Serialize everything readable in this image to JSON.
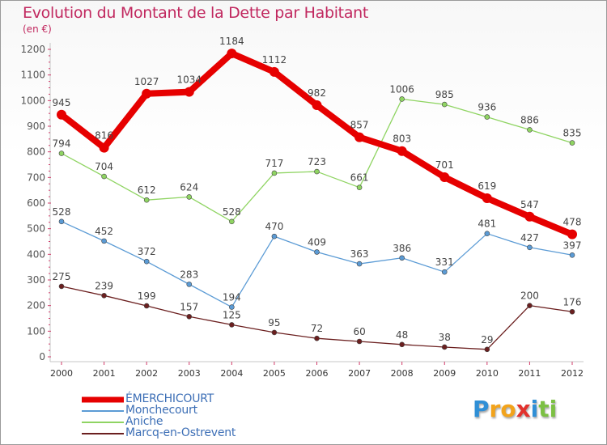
{
  "title": "Evolution du Montant de la Dette par Habitant",
  "subtitle": "(en €)",
  "chart_data": {
    "type": "line",
    "x": [
      "2000",
      "2001",
      "2002",
      "2003",
      "2004",
      "2005",
      "2006",
      "2007",
      "2008",
      "2009",
      "2010",
      "2011",
      "2012"
    ],
    "ylim": [
      0,
      1200
    ],
    "yticks": [
      0,
      100,
      200,
      300,
      400,
      500,
      600,
      700,
      800,
      900,
      1000,
      1100,
      1200
    ],
    "grid": false,
    "legend_position": "bottom-left",
    "series": [
      {
        "name": "ÉMERCHICOURT",
        "color": "#e60000",
        "values": [
          945,
          816,
          1027,
          1034,
          1184,
          1112,
          982,
          857,
          803,
          701,
          619,
          547,
          478
        ]
      },
      {
        "name": "Monchecourt",
        "color": "#5b9bd5",
        "values": [
          528,
          452,
          372,
          283,
          194,
          470,
          409,
          363,
          386,
          331,
          481,
          427,
          397
        ]
      },
      {
        "name": "Aniche",
        "color": "#8fd462",
        "values": [
          794,
          704,
          612,
          624,
          528,
          717,
          723,
          661,
          1006,
          985,
          936,
          886,
          835
        ]
      },
      {
        "name": "Marcq-en-Ostrevent",
        "color": "#6b1f1f",
        "values": [
          275,
          239,
          199,
          157,
          125,
          95,
          72,
          60,
          48,
          38,
          29,
          200,
          176
        ]
      }
    ]
  },
  "logo": {
    "letters": [
      "P",
      "r",
      "o",
      "x",
      "i",
      "t",
      "i"
    ],
    "colors": [
      "#2f8fd6",
      "#f2a31b",
      "#f2a31b",
      "#e2322d",
      "#2f8fd6",
      "#7cc043",
      "#7cc043"
    ]
  }
}
